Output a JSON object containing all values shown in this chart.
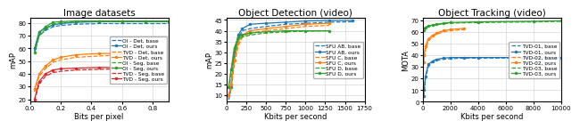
{
  "panels": [
    {
      "title": "Image datasets",
      "xlabel": "Bits per pixel",
      "ylabel": "mAP",
      "xlim": [
        0,
        0.9
      ],
      "ylim": [
        18,
        84
      ],
      "yticks": [
        20,
        30,
        40,
        50,
        60,
        70,
        80
      ],
      "xticks": [
        0.0,
        0.2,
        0.4,
        0.6,
        0.8
      ],
      "legend_loc": "center right",
      "series": [
        {
          "label": "OI - Det, base",
          "color": "#1f77b4",
          "linestyle": "--",
          "marker": null,
          "x": [
            0.03,
            0.06,
            0.1,
            0.15,
            0.2,
            0.3,
            0.45,
            0.6,
            0.75,
            0.9
          ],
          "y": [
            58,
            70,
            74,
            77,
            78,
            79,
            79.5,
            79.5,
            79.5,
            79.5
          ]
        },
        {
          "label": "OI - Det, ours",
          "color": "#1f77b4",
          "linestyle": "-",
          "marker": "o",
          "x": [
            0.03,
            0.06,
            0.1,
            0.15,
            0.2,
            0.3,
            0.45,
            0.6,
            0.75,
            0.9
          ],
          "y": [
            60,
            73,
            76,
            78.5,
            79.5,
            80.5,
            81,
            81,
            81,
            81
          ]
        },
        {
          "label": "TVD - Det, base",
          "color": "#ff7f0e",
          "linestyle": "--",
          "marker": null,
          "x": [
            0.03,
            0.06,
            0.1,
            0.15,
            0.2,
            0.3,
            0.45,
            0.6
          ],
          "y": [
            26,
            38,
            44,
            49,
            51,
            53,
            54,
            55
          ]
        },
        {
          "label": "TVD - Det, ours",
          "color": "#ff7f0e",
          "linestyle": "-",
          "marker": "o",
          "x": [
            0.03,
            0.06,
            0.1,
            0.15,
            0.2,
            0.3,
            0.45,
            0.6
          ],
          "y": [
            28,
            40,
            46,
            51,
            53,
            55,
            56,
            56
          ]
        },
        {
          "label": "OI - Seg, base",
          "color": "#2ca02c",
          "linestyle": "--",
          "marker": null,
          "x": [
            0.03,
            0.06,
            0.1,
            0.15,
            0.2,
            0.3,
            0.45,
            0.6,
            0.75,
            0.9
          ],
          "y": [
            56,
            70,
            75,
            79,
            80,
            81,
            81,
            81,
            81,
            81
          ]
        },
        {
          "label": "OI - Seg, ours",
          "color": "#2ca02c",
          "linestyle": "-",
          "marker": "o",
          "x": [
            0.03,
            0.06,
            0.1,
            0.15,
            0.2,
            0.3,
            0.45,
            0.6,
            0.75,
            0.9
          ],
          "y": [
            57,
            72,
            77,
            80.5,
            81,
            81.5,
            81.5,
            81.5,
            81.5,
            81.5
          ]
        },
        {
          "label": "TVD - Seg, base",
          "color": "#d62728",
          "linestyle": "--",
          "marker": null,
          "x": [
            0.03,
            0.06,
            0.1,
            0.15,
            0.2,
            0.3,
            0.45,
            0.6
          ],
          "y": [
            19,
            32,
            38,
            41,
            42,
            43,
            43.5,
            44
          ]
        },
        {
          "label": "TVD - Seg, ours",
          "color": "#d62728",
          "linestyle": "-",
          "marker": "o",
          "x": [
            0.03,
            0.06,
            0.1,
            0.15,
            0.2,
            0.3,
            0.45,
            0.6
          ],
          "y": [
            20,
            34,
            40,
            43,
            44,
            44.5,
            45,
            45
          ]
        }
      ]
    },
    {
      "title": "Object Detection (video)",
      "xlabel": "Kbits per second",
      "ylabel": "mAP",
      "xlim": [
        0,
        1750
      ],
      "ylim": [
        7,
        46
      ],
      "yticks": [
        10,
        15,
        20,
        25,
        30,
        35,
        40,
        45
      ],
      "xticks": [
        0,
        250,
        500,
        750,
        1000,
        1250,
        1500,
        1750
      ],
      "legend_loc": "center right",
      "series": [
        {
          "label": "SFU AB, base",
          "color": "#1f77b4",
          "linestyle": "--",
          "marker": null,
          "x": [
            30,
            60,
            100,
            150,
            200,
            300,
            500,
            750,
            1000,
            1300,
            1600
          ],
          "y": [
            8,
            13,
            28,
            36,
            40,
            41,
            42,
            43,
            43.5,
            44,
            44.2
          ]
        },
        {
          "label": "SFU AB, ours",
          "color": "#1f77b4",
          "linestyle": "-",
          "marker": "o",
          "x": [
            30,
            60,
            100,
            150,
            200,
            300,
            500,
            750,
            1000,
            1300,
            1600
          ],
          "y": [
            10,
            14,
            30,
            38,
            41,
            43,
            43.5,
            44,
            44.5,
            44.8,
            44.8
          ]
        },
        {
          "label": "SFU C, base",
          "color": "#ff7f0e",
          "linestyle": "--",
          "marker": null,
          "x": [
            30,
            60,
            100,
            150,
            200,
            300,
            500,
            750,
            1000,
            1300
          ],
          "y": [
            9,
            13,
            24,
            33,
            37,
            39,
            40,
            41,
            42,
            42.5
          ]
        },
        {
          "label": "SFU C, ours",
          "color": "#ff7f0e",
          "linestyle": "-",
          "marker": "o",
          "x": [
            30,
            60,
            100,
            150,
            200,
            300,
            500,
            750,
            1000,
            1300
          ],
          "y": [
            10,
            15,
            26,
            35,
            38,
            40,
            41,
            42,
            43,
            43.5
          ]
        },
        {
          "label": "SFU D, base",
          "color": "#2ca02c",
          "linestyle": "--",
          "marker": null,
          "x": [
            30,
            60,
            100,
            150,
            200,
            300,
            500,
            750,
            1000,
            1300
          ],
          "y": [
            13,
            20,
            30,
            36,
            37,
            38,
            39,
            39.5,
            39.8,
            40
          ]
        },
        {
          "label": "SFU D, ours",
          "color": "#2ca02c",
          "linestyle": "-",
          "marker": "o",
          "x": [
            30,
            60,
            100,
            150,
            200,
            300,
            500,
            750,
            1000,
            1300
          ],
          "y": [
            14,
            22,
            32,
            37,
            38,
            39,
            39.5,
            40,
            40,
            40
          ]
        }
      ]
    },
    {
      "title": "Object Tracking (video)",
      "xlabel": "Kbits per second",
      "ylabel": "MOTA",
      "xlim": [
        0,
        10000
      ],
      "ylim": [
        0,
        72
      ],
      "yticks": [
        0,
        10,
        20,
        30,
        40,
        50,
        60,
        70
      ],
      "xticks": [
        0,
        2000,
        4000,
        6000,
        8000,
        10000
      ],
      "legend_loc": "center right",
      "series": [
        {
          "label": "TVD-01, base",
          "color": "#1f77b4",
          "linestyle": "--",
          "marker": null,
          "x": [
            50,
            100,
            200,
            400,
            700,
            1000,
            1500,
            2000,
            3000,
            4000,
            8000,
            10000
          ],
          "y": [
            4,
            8,
            20,
            30,
            34,
            35.5,
            36.5,
            37,
            37.5,
            37.5,
            37.5,
            37.5
          ]
        },
        {
          "label": "TVD-01, ours",
          "color": "#1f77b4",
          "linestyle": "-",
          "marker": "o",
          "x": [
            50,
            100,
            200,
            400,
            700,
            1000,
            1500,
            2000,
            3000,
            4000,
            8000,
            10000
          ],
          "y": [
            5,
            10,
            22,
            32,
            35,
            36.5,
            37.5,
            38,
            38,
            38,
            38,
            38
          ]
        },
        {
          "label": "TVD-02, base",
          "color": "#ff7f0e",
          "linestyle": "--",
          "marker": null,
          "x": [
            50,
            100,
            200,
            400,
            700,
            1000,
            1500,
            2000,
            3000
          ],
          "y": [
            33,
            37,
            45,
            52,
            56,
            58,
            60,
            61,
            62
          ]
        },
        {
          "label": "TVD-02, ours",
          "color": "#ff7f0e",
          "linestyle": "-",
          "marker": "o",
          "x": [
            50,
            100,
            200,
            400,
            700,
            1000,
            1500,
            2000,
            3000
          ],
          "y": [
            34,
            40,
            48,
            54,
            57,
            59,
            61,
            62,
            63
          ]
        },
        {
          "label": "TVD-03, base",
          "color": "#2ca02c",
          "linestyle": "--",
          "marker": null,
          "x": [
            50,
            100,
            200,
            400,
            700,
            1000,
            1500,
            2000,
            4000,
            8000,
            10000
          ],
          "y": [
            60,
            62,
            63,
            64.5,
            65.5,
            66,
            67,
            67.5,
            68,
            68.5,
            69
          ]
        },
        {
          "label": "TVD-03, ours",
          "color": "#2ca02c",
          "linestyle": "-",
          "marker": "o",
          "x": [
            50,
            100,
            200,
            400,
            700,
            1000,
            1500,
            2000,
            4000,
            8000,
            10000
          ],
          "y": [
            61,
            63,
            64,
            65,
            66,
            66.5,
            67.5,
            68,
            68.5,
            69,
            69.5
          ]
        }
      ]
    }
  ]
}
